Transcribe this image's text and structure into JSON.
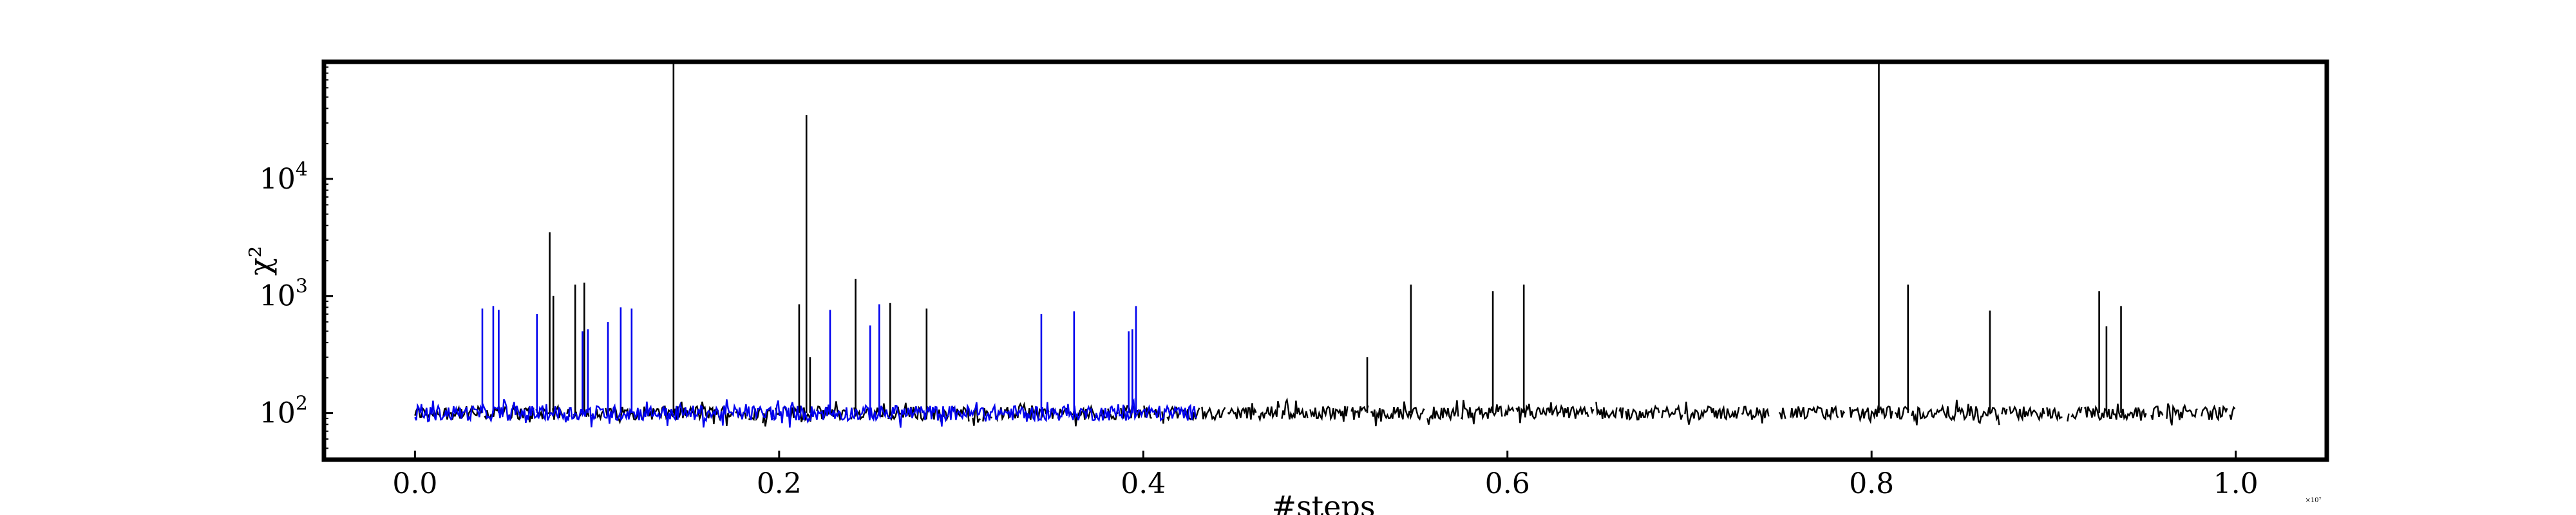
{
  "chart_data": {
    "type": "line",
    "title": "",
    "xlabel": "#steps",
    "ylabel": "χ²",
    "x_multiplier_label": "×10⁷",
    "x_unit_scale": 10000000,
    "xlim": [
      -0.05,
      1.05
    ],
    "ylim": [
      40,
      100000
    ],
    "y_scale": "log",
    "grid": false,
    "x_ticks": [
      0.0,
      0.2,
      0.4,
      0.6,
      0.8,
      1.0
    ],
    "x_tick_labels": [
      "0.0",
      "0.2",
      "0.4",
      "0.6",
      "0.8",
      "1.0"
    ],
    "y_ticks": [
      100,
      1000,
      10000
    ],
    "y_tick_labels": [
      {
        "base": "10",
        "exp": "2"
      },
      {
        "base": "10",
        "exp": "3"
      },
      {
        "base": "10",
        "exp": "4"
      }
    ],
    "series": [
      {
        "color": "#000000",
        "x_range": [
          0.0,
          1.0
        ],
        "baseline": 100,
        "noise_range": [
          90,
          125
        ],
        "spikes": [
          {
            "x": 0.074,
            "y": 3500
          },
          {
            "x": 0.076,
            "y": 1000
          },
          {
            "x": 0.088,
            "y": 1250
          },
          {
            "x": 0.093,
            "y": 1300
          },
          {
            "x": 0.142,
            "y": 100000
          },
          {
            "x": 0.211,
            "y": 850
          },
          {
            "x": 0.215,
            "y": 35000
          },
          {
            "x": 0.217,
            "y": 300
          },
          {
            "x": 0.242,
            "y": 1400
          },
          {
            "x": 0.261,
            "y": 870
          },
          {
            "x": 0.281,
            "y": 780
          },
          {
            "x": 0.523,
            "y": 300
          },
          {
            "x": 0.547,
            "y": 1250
          },
          {
            "x": 0.592,
            "y": 1100
          },
          {
            "x": 0.609,
            "y": 1250
          },
          {
            "x": 0.804,
            "y": 100000
          },
          {
            "x": 0.82,
            "y": 1250
          },
          {
            "x": 0.865,
            "y": 750
          },
          {
            "x": 0.925,
            "y": 1100
          },
          {
            "x": 0.929,
            "y": 550
          },
          {
            "x": 0.937,
            "y": 820
          }
        ]
      },
      {
        "color": "#0000ee",
        "x_range": [
          0.0,
          0.43
        ],
        "baseline": 100,
        "noise_range": [
          88,
          128
        ],
        "spikes": [
          {
            "x": 0.037,
            "y": 780
          },
          {
            "x": 0.043,
            "y": 820
          },
          {
            "x": 0.046,
            "y": 760
          },
          {
            "x": 0.067,
            "y": 700
          },
          {
            "x": 0.092,
            "y": 500
          },
          {
            "x": 0.095,
            "y": 520
          },
          {
            "x": 0.106,
            "y": 600
          },
          {
            "x": 0.113,
            "y": 800
          },
          {
            "x": 0.119,
            "y": 780
          },
          {
            "x": 0.228,
            "y": 760
          },
          {
            "x": 0.25,
            "y": 560
          },
          {
            "x": 0.255,
            "y": 850
          },
          {
            "x": 0.344,
            "y": 700
          },
          {
            "x": 0.362,
            "y": 740
          },
          {
            "x": 0.392,
            "y": 500
          },
          {
            "x": 0.394,
            "y": 520
          },
          {
            "x": 0.396,
            "y": 820
          }
        ]
      }
    ]
  }
}
